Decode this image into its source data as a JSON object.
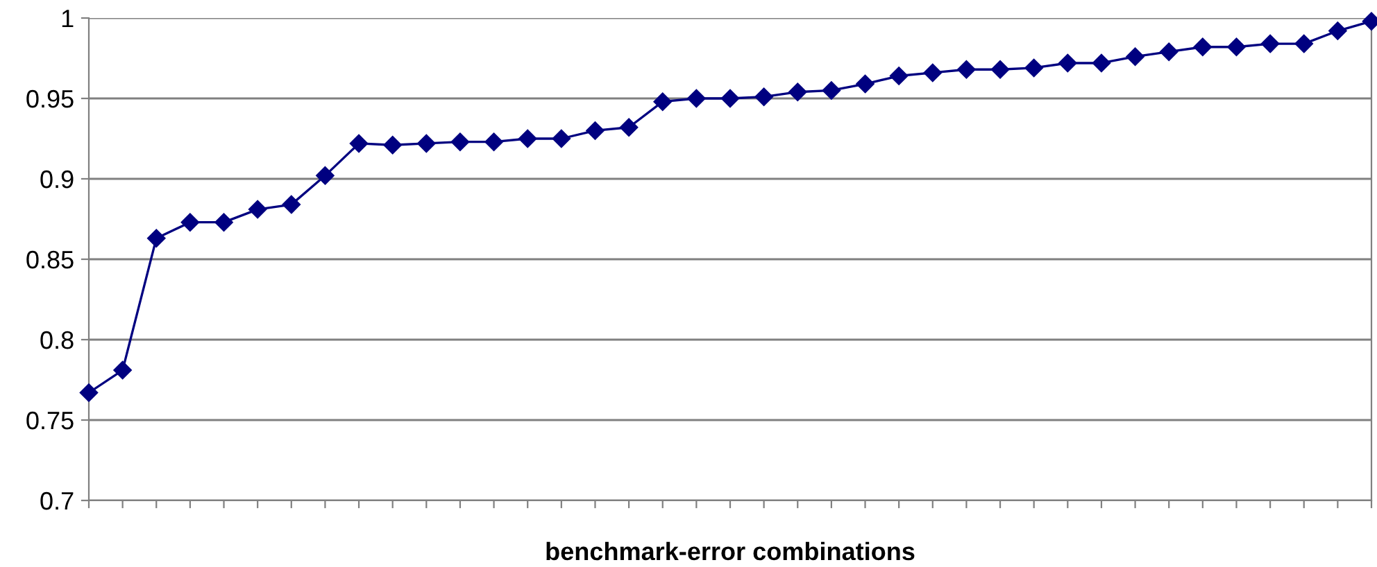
{
  "chart_data": {
    "type": "line",
    "xlabel": "benchmark-error combinations",
    "categories": [
      null,
      null,
      null,
      null,
      null,
      null,
      null,
      null,
      null,
      null,
      null,
      null,
      null,
      null,
      null,
      null,
      null,
      null,
      null,
      null,
      null,
      null,
      null,
      null,
      null,
      null,
      null,
      null,
      null,
      null,
      null,
      null,
      null,
      null,
      null,
      null,
      null,
      null,
      null
    ],
    "series": [
      {
        "color": "#000080",
        "values": [
          0.767,
          0.781,
          0.863,
          0.873,
          0.873,
          0.881,
          0.884,
          0.902,
          0.922,
          0.921,
          0.922,
          0.923,
          0.923,
          0.925,
          0.925,
          0.93,
          0.932,
          0.948,
          0.95,
          0.95,
          0.951,
          0.954,
          0.955,
          0.959,
          0.964,
          0.966,
          0.968,
          0.968,
          0.969,
          0.972,
          0.972,
          0.976,
          0.979,
          0.982,
          0.982,
          0.984,
          0.984,
          0.992,
          0.998
        ]
      }
    ],
    "ylim": [
      0.7,
      1
    ],
    "yticks": [
      0.7,
      0.75,
      0.8,
      0.85,
      0.9,
      0.95,
      1
    ],
    "grid": "y",
    "marker": "diamond",
    "line_style": "solid"
  }
}
